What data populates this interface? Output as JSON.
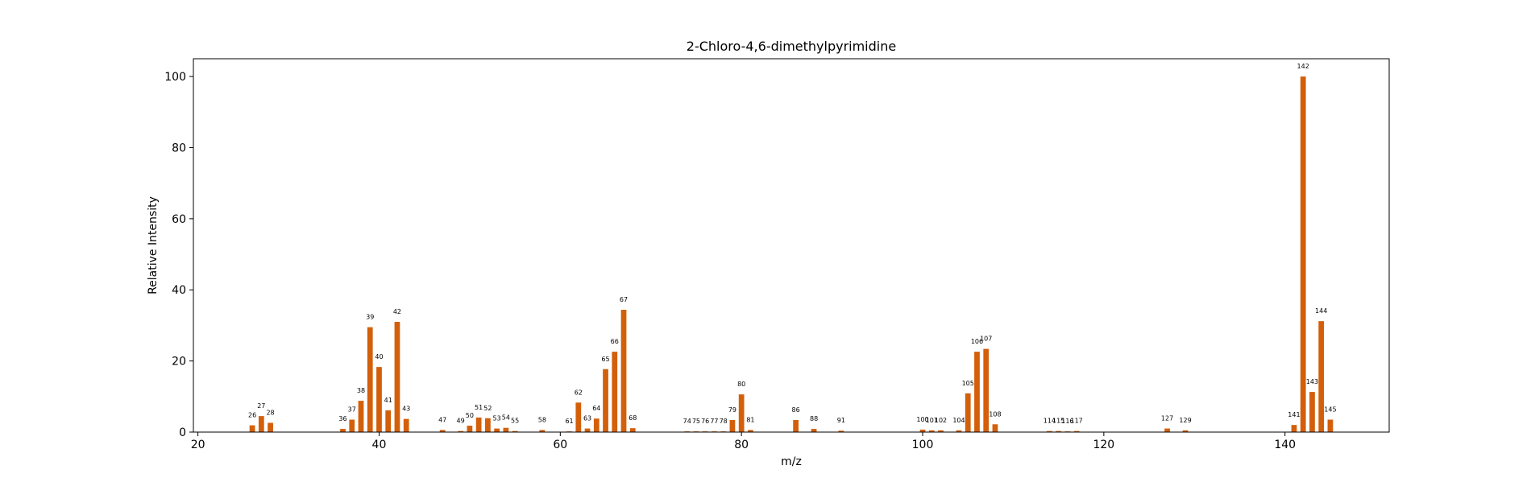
{
  "chart_data": {
    "type": "bar",
    "title": "2-Chloro-4,6-dimethylpyrimidine",
    "xlabel": "m/z",
    "ylabel": "Relative Intensity",
    "xlim": [
      19.5,
      151.5
    ],
    "ylim": [
      0,
      105
    ],
    "xticks": [
      20,
      40,
      60,
      80,
      100,
      120,
      140
    ],
    "yticks": [
      0,
      20,
      40,
      60,
      80,
      100
    ],
    "grid": false,
    "bar_color": "#d35f0a",
    "x": [
      26,
      27,
      28,
      36,
      37,
      38,
      39,
      40,
      41,
      42,
      43,
      47,
      49,
      50,
      51,
      52,
      53,
      54,
      55,
      58,
      61,
      62,
      63,
      64,
      65,
      66,
      67,
      68,
      74,
      75,
      76,
      77,
      78,
      79,
      80,
      81,
      86,
      88,
      91,
      100,
      101,
      102,
      104,
      105,
      106,
      107,
      108,
      114,
      115,
      116,
      117,
      127,
      129,
      141,
      142,
      143,
      144,
      145
    ],
    "values": [
      1.9,
      4.5,
      2.6,
      0.9,
      3.5,
      8.8,
      29.5,
      18.3,
      6.1,
      31.0,
      3.7,
      0.6,
      0.3,
      1.8,
      4.1,
      3.9,
      1.0,
      1.2,
      0.3,
      0.6,
      0.2,
      8.3,
      1.0,
      3.8,
      17.7,
      22.6,
      34.4,
      1.1,
      0.2,
      0.2,
      0.2,
      0.2,
      0.2,
      3.4,
      10.6,
      0.6,
      3.4,
      0.9,
      0.4,
      0.7,
      0.5,
      0.5,
      0.5,
      10.9,
      22.6,
      23.4,
      2.2,
      0.3,
      0.3,
      0.2,
      0.3,
      1.0,
      0.5,
      2.0,
      100.0,
      11.3,
      31.2,
      3.5
    ],
    "labels": [
      "26",
      "27",
      "28",
      "36",
      "37",
      "38",
      "39",
      "40",
      "41",
      "42",
      "43",
      "47",
      "49",
      "50",
      "51",
      "52",
      "53",
      "54",
      "55",
      "58",
      "61",
      "62",
      "63",
      "64",
      "65",
      "66",
      "67",
      "68",
      "74",
      "75",
      "76",
      "77",
      "78",
      "79",
      "80",
      "81",
      "86",
      "88",
      "91",
      "100",
      "101",
      "102",
      "104",
      "105",
      "106",
      "107",
      "108",
      "114",
      "115",
      "116",
      "117",
      "127",
      "129",
      "141",
      "142",
      "143",
      "144",
      "145"
    ]
  }
}
